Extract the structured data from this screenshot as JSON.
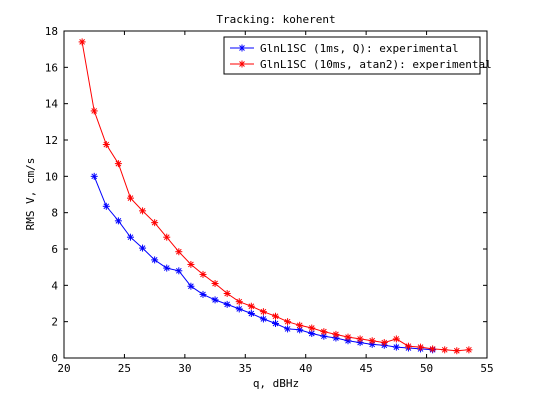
{
  "chart_data": {
    "type": "line",
    "title": "Tracking: koherent",
    "xlabel": "q, dBHz",
    "ylabel": "RMS V, cm/s",
    "xlim": [
      20,
      55
    ],
    "ylim": [
      0,
      18
    ],
    "xticks": [
      20,
      25,
      30,
      35,
      40,
      45,
      50,
      55
    ],
    "yticks": [
      0,
      2,
      4,
      6,
      8,
      10,
      12,
      14,
      16,
      18
    ],
    "grid": false,
    "legend_position": "top-right",
    "series": [
      {
        "name": "GlnL1SC (1ms, Q): experimental",
        "color": "#0000ff",
        "marker": "asterisk",
        "x": [
          22.5,
          23.5,
          24.5,
          25.5,
          26.5,
          27.5,
          28.5,
          29.5,
          30.5,
          31.5,
          32.5,
          33.5,
          34.5,
          35.5,
          36.5,
          37.5,
          38.5,
          39.5,
          40.5,
          41.5,
          42.5,
          43.5,
          44.5,
          45.5,
          46.5,
          47.5,
          48.5,
          49.5,
          50.5
        ],
        "values": [
          10.0,
          8.35,
          7.55,
          6.65,
          6.05,
          5.4,
          4.95,
          4.8,
          3.95,
          3.5,
          3.2,
          2.95,
          2.7,
          2.45,
          2.15,
          1.9,
          1.6,
          1.55,
          1.35,
          1.2,
          1.1,
          0.95,
          0.85,
          0.75,
          0.7,
          0.6,
          0.55,
          0.5,
          0.45
        ]
      },
      {
        "name": "GlnL1SC (10ms, atan2): experimental",
        "color": "#ff0000",
        "marker": "asterisk",
        "x": [
          21.5,
          22.5,
          23.5,
          24.5,
          25.5,
          26.5,
          27.5,
          28.5,
          29.5,
          30.5,
          31.5,
          32.5,
          33.5,
          34.5,
          35.5,
          36.5,
          37.5,
          38.5,
          39.5,
          40.5,
          41.5,
          42.5,
          43.5,
          44.5,
          45.5,
          46.5,
          47.5,
          48.5,
          49.5,
          50.5,
          51.5,
          52.5,
          53.5
        ],
        "values": [
          17.4,
          13.6,
          11.75,
          10.7,
          8.8,
          8.1,
          7.45,
          6.65,
          5.85,
          5.15,
          4.6,
          4.1,
          3.55,
          3.1,
          2.85,
          2.55,
          2.3,
          2.0,
          1.8,
          1.65,
          1.45,
          1.3,
          1.15,
          1.05,
          0.95,
          0.85,
          1.05,
          0.65,
          0.6,
          0.5,
          0.45,
          0.4,
          0.45
        ]
      }
    ]
  }
}
